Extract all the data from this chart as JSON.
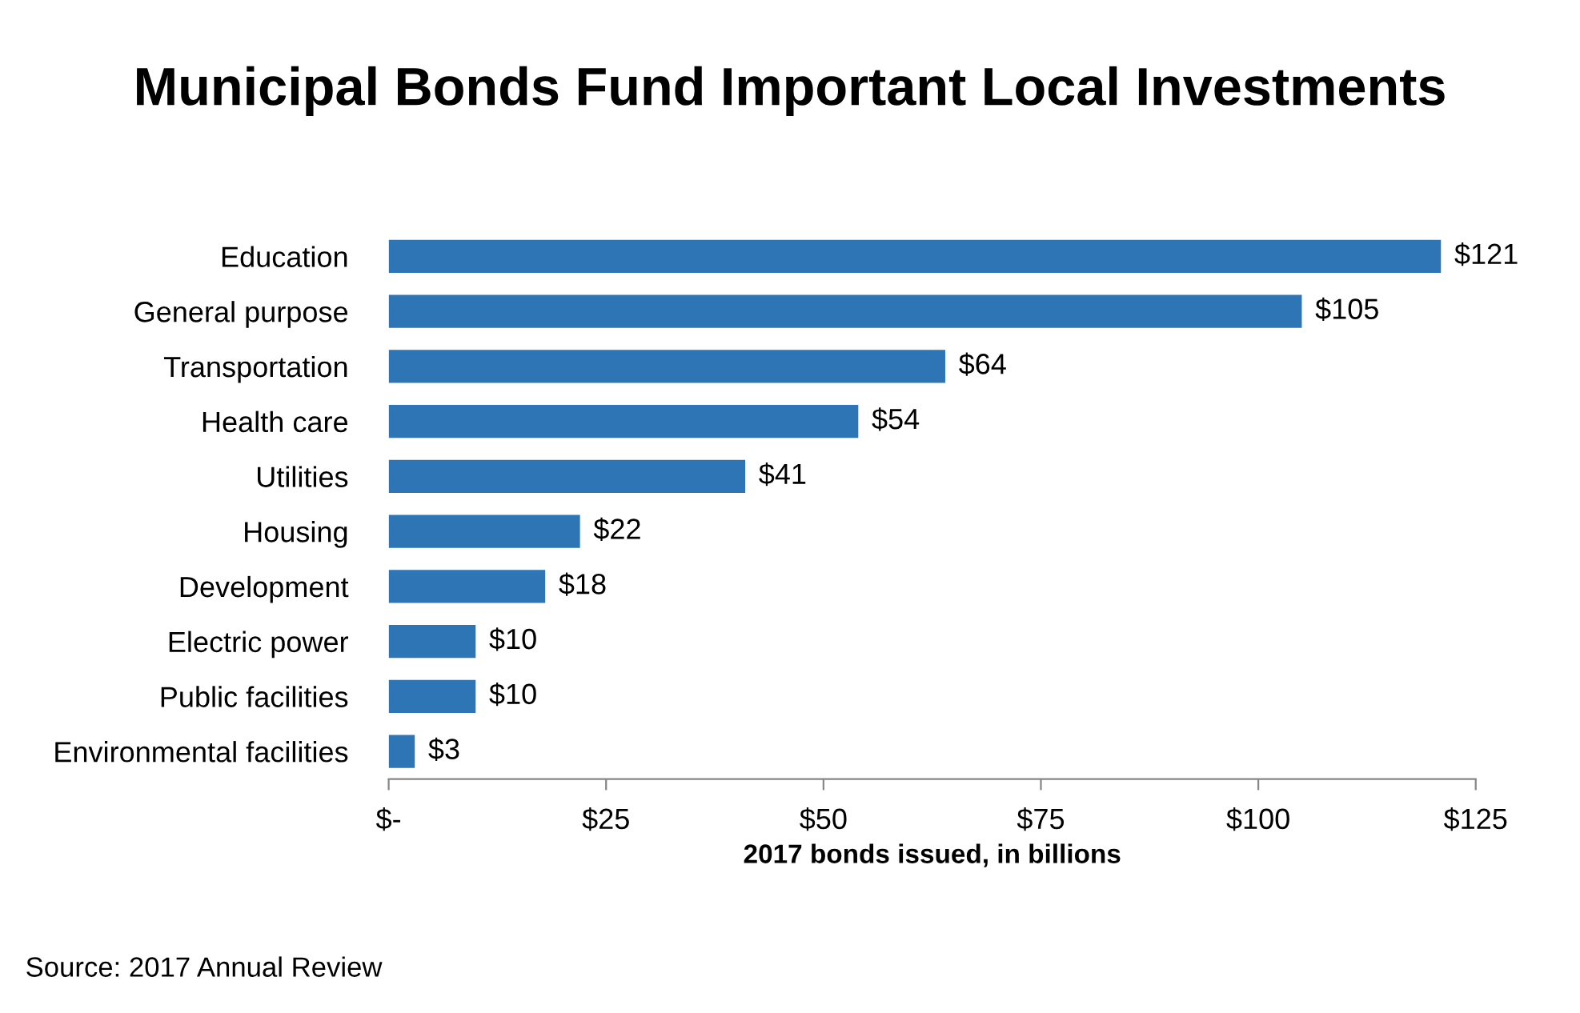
{
  "chart_data": {
    "type": "bar",
    "orientation": "horizontal",
    "title": "Municipal Bonds Fund Important Local Investments",
    "xlabel": "2017 bonds issued, in billions",
    "categories": [
      "Education",
      "General purpose",
      "Transportation",
      "Health care",
      "Utilities",
      "Housing",
      "Development",
      "Electric power",
      "Public facilities",
      "Environmental facilities"
    ],
    "values": [
      121,
      105,
      64,
      54,
      41,
      22,
      18,
      10,
      10,
      3
    ],
    "value_labels": [
      "$121",
      "$105",
      "$64",
      "$54",
      "$41",
      "$22",
      "$18",
      "$10",
      "$10",
      "$3"
    ],
    "color": "#2e75b6",
    "xlim": [
      0,
      125
    ],
    "xticks": [
      {
        "value": 0,
        "label": "$-"
      },
      {
        "value": 25,
        "label": "$25"
      },
      {
        "value": 50,
        "label": "$50"
      },
      {
        "value": 75,
        "label": "$75"
      },
      {
        "value": 100,
        "label": "$100"
      },
      {
        "value": 125,
        "label": "$125"
      }
    ],
    "grid": false,
    "legend": false,
    "annotations": [
      "Source: 2017 Annual Review"
    ]
  }
}
